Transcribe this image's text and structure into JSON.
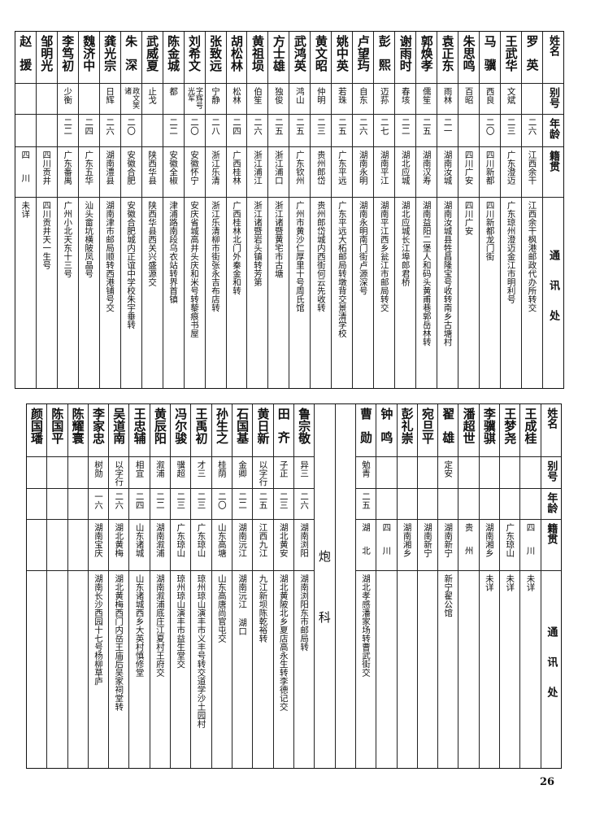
{
  "headers": [
    "姓名",
    "别号",
    "年龄",
    "籍贯",
    "通讯处"
  ],
  "top_table": [
    {
      "name": "罗英",
      "alias": "",
      "age": "二六",
      "origin": "江西余干",
      "address": "江西余干枫港邮政代办所转交"
    },
    {
      "name": "王武华",
      "alias": "文斌",
      "age": "二三",
      "origin": "广东澄迈",
      "address": "广东琼州澄迈金江市明利号"
    },
    {
      "name": "马骥",
      "alias": "西良",
      "age": "二〇",
      "origin": "四川新都",
      "address": "四川新都龙门街"
    },
    {
      "name": "朱思鸣",
      "alias": "百昭",
      "age": "",
      "origin": "四川广安",
      "address": "四川广安"
    },
    {
      "name": "袁正东",
      "alias": "雨林",
      "age": "二一",
      "origin": "湖南汝城",
      "address": "湖南汝城县牲昌隆宝号收转南乡古塘村"
    },
    {
      "name": "郭焕孝",
      "alias": "儒笙",
      "age": "二五",
      "origin": "湖南汉寿",
      "address": "湖南益阳二堡人和码头黄甫巷郭岳林转"
    },
    {
      "name": "谢雨时",
      "alias": "春垓",
      "age": "二二",
      "origin": "湖北应城",
      "address": "湖北应城长江埠郎君桥"
    },
    {
      "name": "彭熙",
      "alias": "迈荪",
      "age": "二七",
      "origin": "湖南平江",
      "address": "湖南平江西乡瓮江市邮局转交"
    },
    {
      "name": "卢望玙",
      "alias": "自东",
      "age": "二六",
      "origin": "湖南永明",
      "address": "湖南永明南门街卢源深号"
    },
    {
      "name": "姚中英",
      "alias": "若珠",
      "age": "二五",
      "origin": "广东平远",
      "address": "广东平远大柘邮局转墩背交景清学校"
    },
    {
      "name": "黄文昭",
      "alias": "仲明",
      "age": "二三",
      "origin": "贵州郎岱",
      "address": "贵州郎岱城内西街何云先收转"
    },
    {
      "name": "武鸿英",
      "alias": "鸿山",
      "age": "二五",
      "origin": "广东钦州",
      "address": "广州市黄沙仁厚里十号周氏馆"
    },
    {
      "name": "方士雄",
      "alias": "独俊",
      "age": "二五",
      "origin": "浙江浦口",
      "address": "浙江诸暨黄宅市古塘"
    },
    {
      "name": "黄祖埙",
      "alias": "伯笙",
      "age": "二六",
      "origin": "浙江浦江",
      "address": "浙江诸暨岩头镇转芳第"
    },
    {
      "name": "胡松林",
      "alias": "松林",
      "age": "二四",
      "origin": "广西桂林",
      "address": "广西桂林北门外秦金和转"
    },
    {
      "name": "张致远",
      "alias": "宁静",
      "age": "二八",
      "origin": "浙江乐清",
      "address": "浙江乐清柳市街张永吉布店转"
    },
    {
      "name": "刘希文",
      "alias": "字辉号光军",
      "age": "二〇",
      "origin": "安徽怀宁",
      "address": "安庆省城高井头庆和米号转藜痕书屋"
    },
    {
      "name": "陈金城",
      "alias": "都",
      "age": "二二",
      "origin": "安徽全椒",
      "address": "津浦路南段乌衣站转界首镇"
    },
    {
      "name": "武威夏",
      "alias": "止戈",
      "age": "",
      "origin": "陕西华县",
      "address": "陕西华县西关兴盛源交"
    },
    {
      "name": "朱深",
      "alias": "政文笑诸",
      "age": "二〇",
      "origin": "安徽合肥",
      "address": "安徽合肥城内正谊中学校朱宇垂转"
    },
    {
      "name": "龚光宗",
      "alias": "日辉",
      "age": "二六",
      "origin": "湖南澧县",
      "address": "湖南津市邮局顺转西港铺号交"
    },
    {
      "name": "魏济中",
      "alias": "",
      "age": "二四",
      "origin": "广东五华",
      "address": "汕头畲坑横陂凤晶号"
    },
    {
      "name": "李笃初",
      "alias": "少衡",
      "age": "二二",
      "origin": "广东番禺",
      "address": "广州小北天东十三号"
    },
    {
      "name": "邹明光",
      "alias": "",
      "age": "",
      "origin": "四川贡井",
      "address": "四川贡井天一生号"
    },
    {
      "name": "赵援",
      "alias": "",
      "age": "",
      "origin": "四川",
      "address": "未详"
    }
  ],
  "bottom_table_right": [
    {
      "name": "王成桂",
      "alias": "",
      "age": "",
      "origin": "四川",
      "address": "未详"
    },
    {
      "name": "王梦尧",
      "alias": "",
      "age": "",
      "origin": "广东琼山",
      "address": "未详"
    },
    {
      "name": "李骥骐",
      "alias": "",
      "age": "",
      "origin": "湖南湘乡",
      "address": "未详"
    },
    {
      "name": "潘超世",
      "alias": "",
      "age": "",
      "origin": "贵州",
      "address": ""
    },
    {
      "name": "翟雄",
      "alias": "定安",
      "age": "",
      "origin": "湖南新宁",
      "address": "新宁翟公馆"
    },
    {
      "name": "宛旦平",
      "alias": "",
      "age": "",
      "origin": "湖南新宁",
      "address": ""
    },
    {
      "name": "彭礼崇",
      "alias": "",
      "age": "",
      "origin": "湖南湘乡",
      "address": ""
    },
    {
      "name": "钟鸣",
      "alias": "",
      "age": "",
      "origin": "四川",
      "address": ""
    },
    {
      "name": "曹勋",
      "alias": "勉青",
      "age": "二五",
      "origin": "湖北",
      "address": "湖北孝感潘家场转曹武街交"
    }
  ],
  "section_label": "炮科",
  "bottom_table_left": [
    {
      "name": "鲁宗敬",
      "alias": "异三",
      "age": "二六",
      "origin": "湖南浏阳",
      "address": "湖南浏阳东市邮局转"
    },
    {
      "name": "田齐",
      "alias": "子正",
      "age": "二三",
      "origin": "湖北黄安",
      "address": "湖北黄陂北乡夏店高永生转李德记交"
    },
    {
      "name": "黄日新",
      "alias": "以字行",
      "age": "二五",
      "origin": "江西九江",
      "address": "九江新坝陈乾裕转"
    },
    {
      "name": "石国基",
      "alias": "金卿",
      "age": "二二",
      "origin": "湖南沅江",
      "address": "湖南沅江 湖口"
    },
    {
      "name": "孙生之",
      "alias": "桂荫",
      "age": "二〇",
      "origin": "山东高塘",
      "address": "山东高唐尚官屯交"
    },
    {
      "name": "王禹初",
      "alias": "才三",
      "age": "二三",
      "origin": "广东琼山",
      "address": "琼州琼山演丰市义丰号转交道学沙土园村"
    },
    {
      "name": "冯尔骏",
      "alias": "骥超",
      "age": "二三",
      "origin": "广东琼山",
      "address": "琼州琼山演丰市益生堂交"
    },
    {
      "name": "黄辰阳",
      "alias": "溆浦",
      "age": "二二",
      "origin": "湖南溆浦",
      "address": "湖南溆浦底庄江夏村王府交"
    },
    {
      "name": "王忠辅",
      "alias": "相宜",
      "age": "二四",
      "origin": "山东诸城",
      "address": "山东诸城西乡大英村慎修堂"
    },
    {
      "name": "吴道南",
      "alias": "以字行",
      "age": "二六",
      "origin": "湖北黄梅",
      "address": "湖北黄梅西门内岳王庙后吴家祠堂转"
    },
    {
      "name": "李家忠",
      "alias": "树勋",
      "age": "一六",
      "origin": "湖南宝庆",
      "address": "湖南长沙西园十七号杨柳草庐"
    },
    {
      "name": "陈耀寰",
      "alias": "",
      "age": "",
      "origin": "",
      "address": ""
    },
    {
      "name": "陈国平",
      "alias": "",
      "age": "",
      "origin": "",
      "address": ""
    },
    {
      "name": "颜国璠",
      "alias": "",
      "age": "",
      "origin": "",
      "address": ""
    }
  ],
  "page_number": "26"
}
